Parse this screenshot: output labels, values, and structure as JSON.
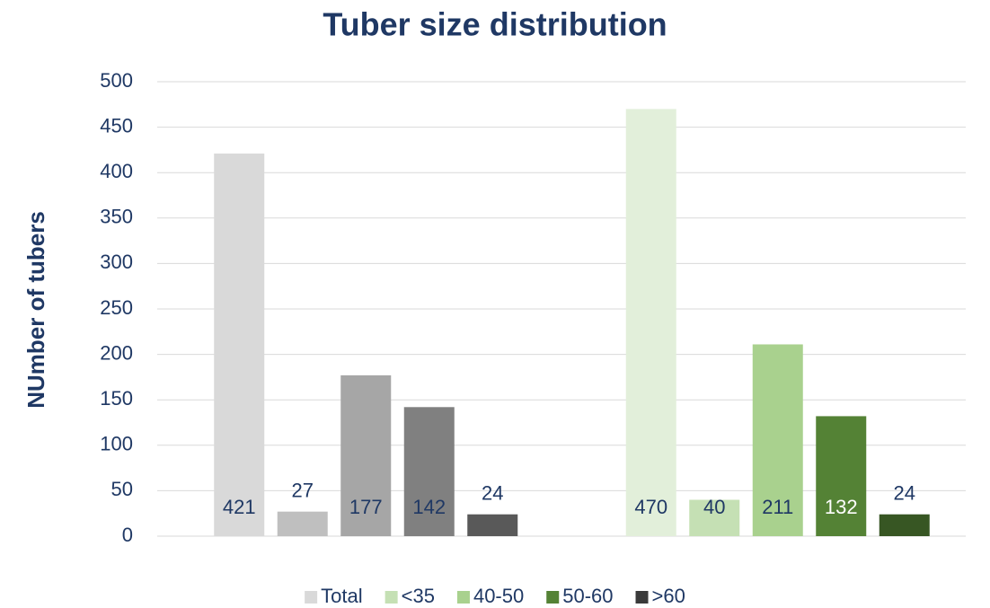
{
  "chart_data": {
    "type": "bar",
    "title": "Tuber size distribution",
    "y_label": "NUmber of tubers",
    "categories": [
      null,
      null
    ],
    "series": [
      {
        "name": "Total",
        "color": "#d9d9d9",
        "colors": [
          "#d9d9d9",
          "#e2efda"
        ],
        "label_colors": [
          "#1f3864",
          "#1f3864"
        ],
        "values": [
          421,
          470
        ]
      },
      {
        "name": "<35",
        "color": "#c5e0b4",
        "colors": [
          "#bfbfbf",
          "#c5e0b4"
        ],
        "label_colors": [
          "#1f3864",
          "#1f3864"
        ],
        "values": [
          27,
          40
        ]
      },
      {
        "name": "40-50",
        "color": "#a9d18e",
        "colors": [
          "#a6a6a6",
          "#a9d18e"
        ],
        "label_colors": [
          "#1f3864",
          "#1f3864"
        ],
        "values": [
          177,
          211
        ]
      },
      {
        "name": "50-60",
        "color": "#548235",
        "colors": [
          "#808080",
          "#548235"
        ],
        "label_colors": [
          "#1f3864",
          "#ffffff"
        ],
        "values": [
          142,
          132
        ]
      },
      {
        "name": ">60",
        "color": "#3a3a3a",
        "colors": [
          "#595959",
          "#375623"
        ],
        "label_colors": [
          "#1f3864",
          "#1f3864"
        ],
        "values": [
          24,
          24
        ]
      }
    ],
    "ylim": [
      0,
      500
    ],
    "yticks": [
      0,
      50,
      100,
      150,
      200,
      250,
      300,
      350,
      400,
      450,
      500
    ],
    "grid": true,
    "legend": "bottom"
  }
}
